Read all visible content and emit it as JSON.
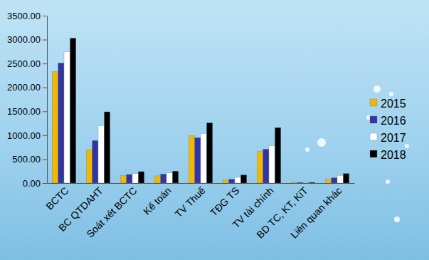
{
  "chart_data": {
    "type": "bar",
    "categories": [
      "BCTC",
      "BC QTDAHT",
      "Soát xét BCTC",
      "Kế toán",
      "TV Thuế",
      "TĐG TS",
      "TV tài chính",
      "BD TC, KT, KiT",
      "Liên quan khác"
    ],
    "series": [
      {
        "name": "2015",
        "color": "#f2b705",
        "values": [
          2330,
          700,
          160,
          150,
          990,
          60,
          660,
          20,
          80
        ]
      },
      {
        "name": "2016",
        "color": "#34349e",
        "values": [
          2510,
          890,
          180,
          190,
          950,
          80,
          710,
          15,
          110
        ]
      },
      {
        "name": "2017",
        "color": "#ffffff",
        "values": [
          2750,
          1200,
          200,
          210,
          1040,
          120,
          780,
          10,
          160
        ]
      },
      {
        "name": "2018",
        "color": "#000000",
        "values": [
          3030,
          1490,
          240,
          250,
          1260,
          170,
          1160,
          15,
          200
        ]
      }
    ],
    "ylim": [
      0,
      3500
    ],
    "yticks": [
      {
        "value": 0,
        "label": "0.00"
      },
      {
        "value": 500,
        "label": "500.00"
      },
      {
        "value": 1000,
        "label": "1000.00"
      },
      {
        "value": 1500,
        "label": "1500.00"
      },
      {
        "value": 2000,
        "label": "2000.00"
      },
      {
        "value": 2500,
        "label": "2500.00"
      },
      {
        "value": 3000,
        "label": "3000.00"
      },
      {
        "value": 3500,
        "label": "3500.00"
      }
    ],
    "grid": false,
    "legend": "right"
  }
}
